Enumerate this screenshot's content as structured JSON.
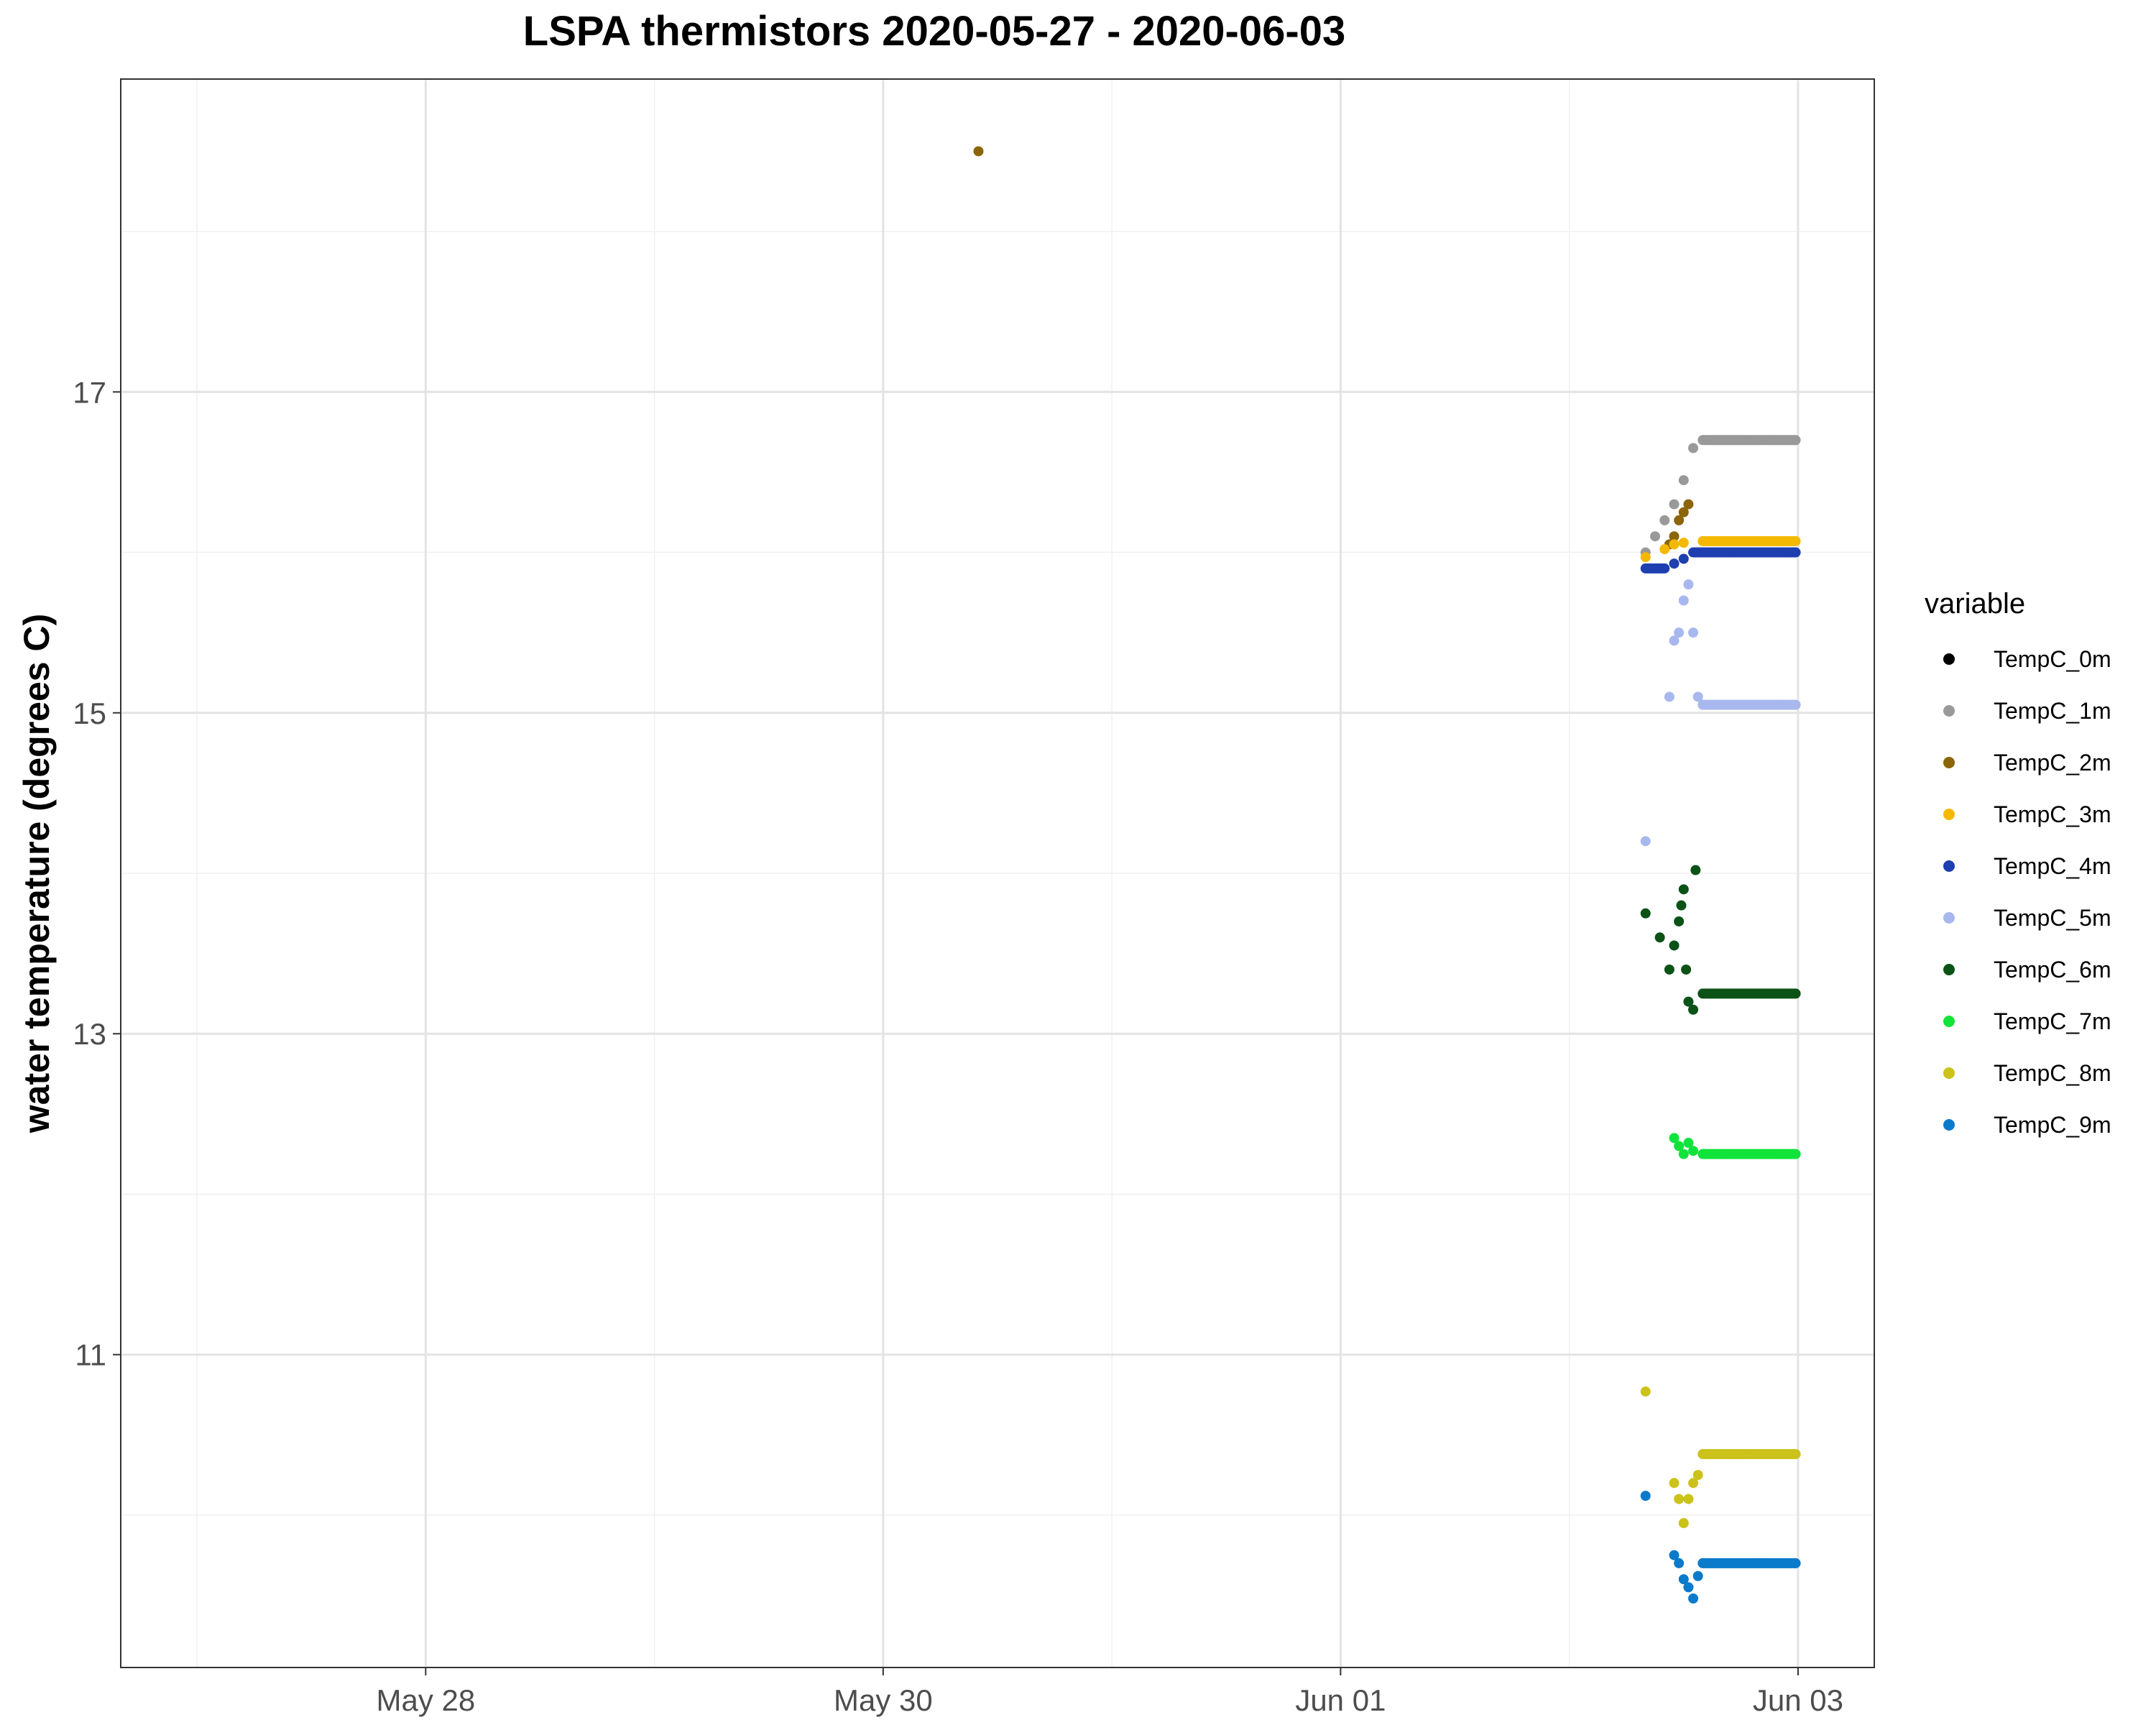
{
  "chart_data": {
    "type": "scatter",
    "title": "LSPA thermistors 2020-05-27 - 2020-06-03",
    "xlabel": "",
    "ylabel": "water temperature (degrees C)",
    "x_tick_labels": [
      "May 28",
      "May 30",
      "Jun 01",
      "Jun 03"
    ],
    "y_tick_labels": [
      "11",
      "13",
      "15",
      "17"
    ],
    "xlim": [
      "2020-05-26 16:00",
      "2020-06-03 08:00"
    ],
    "ylim": [
      9.05,
      18.95
    ],
    "grid": true,
    "legend": {
      "title": "variable",
      "position": "right"
    },
    "series": [
      {
        "name": "TempC_0m",
        "color": "#000000",
        "points": []
      },
      {
        "name": "TempC_1m",
        "color": "#999999",
        "points": [
          [
            "2020-06-02 08:00",
            16.0
          ],
          [
            "2020-06-02 09:00",
            16.1
          ],
          [
            "2020-06-02 10:00",
            16.2
          ],
          [
            "2020-06-02 11:00",
            16.3
          ],
          [
            "2020-06-02 12:00",
            16.45
          ],
          [
            "2020-06-02 13:00",
            16.65
          ],
          [
            "2020-06-02 14:00",
            16.7
          ],
          [
            "2020-06-02 16:00",
            16.7
          ],
          [
            "2020-06-02 18:00",
            16.7
          ],
          [
            "2020-06-02 20:00",
            16.7
          ],
          [
            "2020-06-02 22:00",
            16.7
          ],
          [
            "2020-06-02 23:45",
            16.7
          ]
        ]
      },
      {
        "name": "TempC_2m",
        "color": "#8B6508",
        "points": [
          [
            "2020-05-30 10:00",
            18.5
          ],
          [
            "2020-06-02 10:30",
            16.05
          ],
          [
            "2020-06-02 11:00",
            16.1
          ],
          [
            "2020-06-02 11:30",
            16.2
          ],
          [
            "2020-06-02 12:00",
            16.25
          ],
          [
            "2020-06-02 12:30",
            16.3
          ]
        ]
      },
      {
        "name": "TempC_3m",
        "color": "#F5B800",
        "points": [
          [
            "2020-06-02 08:00",
            15.97
          ],
          [
            "2020-06-02 10:00",
            16.02
          ],
          [
            "2020-06-02 11:00",
            16.05
          ],
          [
            "2020-06-02 12:00",
            16.06
          ],
          [
            "2020-06-02 14:00",
            16.07
          ],
          [
            "2020-06-02 16:00",
            16.07
          ],
          [
            "2020-06-02 18:00",
            16.07
          ],
          [
            "2020-06-02 20:00",
            16.07
          ],
          [
            "2020-06-02 22:00",
            16.07
          ],
          [
            "2020-06-02 23:45",
            16.07
          ]
        ]
      },
      {
        "name": "TempC_4m",
        "color": "#1E3FB0",
        "points": [
          [
            "2020-06-02 08:00",
            15.9
          ],
          [
            "2020-06-02 10:00",
            15.9
          ],
          [
            "2020-06-02 11:00",
            15.93
          ],
          [
            "2020-06-02 12:00",
            15.96
          ],
          [
            "2020-06-02 13:00",
            16.0
          ],
          [
            "2020-06-02 15:00",
            16.0
          ],
          [
            "2020-06-02 17:00",
            16.0
          ],
          [
            "2020-06-02 19:00",
            16.0
          ],
          [
            "2020-06-02 21:00",
            16.0
          ],
          [
            "2020-06-02 23:45",
            16.0
          ]
        ]
      },
      {
        "name": "TempC_5m",
        "color": "#A8B8EE",
        "points": [
          [
            "2020-06-02 08:00",
            14.2
          ],
          [
            "2020-06-02 10:30",
            15.1
          ],
          [
            "2020-06-02 11:00",
            15.45
          ],
          [
            "2020-06-02 11:30",
            15.5
          ],
          [
            "2020-06-02 12:00",
            15.7
          ],
          [
            "2020-06-02 12:30",
            15.8
          ],
          [
            "2020-06-02 13:00",
            15.5
          ],
          [
            "2020-06-02 13:30",
            15.1
          ],
          [
            "2020-06-02 14:00",
            15.05
          ],
          [
            "2020-06-02 16:00",
            15.05
          ],
          [
            "2020-06-02 18:00",
            15.05
          ],
          [
            "2020-06-02 20:00",
            15.05
          ],
          [
            "2020-06-02 22:00",
            15.05
          ],
          [
            "2020-06-02 23:45",
            15.05
          ]
        ]
      },
      {
        "name": "TempC_6m",
        "color": "#0B5217",
        "points": [
          [
            "2020-06-02 08:00",
            13.75
          ],
          [
            "2020-06-02 09:30",
            13.6
          ],
          [
            "2020-06-02 10:30",
            13.4
          ],
          [
            "2020-06-02 11:00",
            13.55
          ],
          [
            "2020-06-02 11:30",
            13.7
          ],
          [
            "2020-06-02 11:45",
            13.8
          ],
          [
            "2020-06-02 12:00",
            13.9
          ],
          [
            "2020-06-02 12:15",
            13.4
          ],
          [
            "2020-06-02 12:30",
            13.2
          ],
          [
            "2020-06-02 13:00",
            13.15
          ],
          [
            "2020-06-02 13:15",
            14.02
          ],
          [
            "2020-06-02 14:00",
            13.25
          ],
          [
            "2020-06-02 16:00",
            13.25
          ],
          [
            "2020-06-02 18:00",
            13.25
          ],
          [
            "2020-06-02 20:00",
            13.25
          ],
          [
            "2020-06-02 22:00",
            13.25
          ],
          [
            "2020-06-02 23:45",
            13.25
          ]
        ]
      },
      {
        "name": "TempC_7m",
        "color": "#11E33B",
        "points": [
          [
            "2020-06-02 11:00",
            12.35
          ],
          [
            "2020-06-02 11:30",
            12.3
          ],
          [
            "2020-06-02 12:00",
            12.25
          ],
          [
            "2020-06-02 12:30",
            12.32
          ],
          [
            "2020-06-02 13:00",
            12.27
          ],
          [
            "2020-06-02 14:00",
            12.25
          ],
          [
            "2020-06-02 16:00",
            12.25
          ],
          [
            "2020-06-02 18:00",
            12.25
          ],
          [
            "2020-06-02 20:00",
            12.25
          ],
          [
            "2020-06-02 22:00",
            12.25
          ],
          [
            "2020-06-02 23:45",
            12.25
          ]
        ]
      },
      {
        "name": "TempC_8m",
        "color": "#CBC21A",
        "points": [
          [
            "2020-06-02 08:00",
            10.77
          ],
          [
            "2020-06-02 11:00",
            10.2
          ],
          [
            "2020-06-02 11:30",
            10.1
          ],
          [
            "2020-06-02 12:00",
            9.95
          ],
          [
            "2020-06-02 12:30",
            10.1
          ],
          [
            "2020-06-02 13:00",
            10.2
          ],
          [
            "2020-06-02 13:30",
            10.25
          ],
          [
            "2020-06-02 14:00",
            10.38
          ],
          [
            "2020-06-02 16:00",
            10.38
          ],
          [
            "2020-06-02 18:00",
            10.38
          ],
          [
            "2020-06-02 20:00",
            10.38
          ],
          [
            "2020-06-02 22:00",
            10.38
          ],
          [
            "2020-06-02 23:45",
            10.38
          ]
        ]
      },
      {
        "name": "TempC_9m",
        "color": "#0A7ACB",
        "points": [
          [
            "2020-06-02 08:00",
            10.12
          ],
          [
            "2020-06-02 11:00",
            9.75
          ],
          [
            "2020-06-02 11:30",
            9.7
          ],
          [
            "2020-06-02 12:00",
            9.6
          ],
          [
            "2020-06-02 12:30",
            9.55
          ],
          [
            "2020-06-02 13:00",
            9.48
          ],
          [
            "2020-06-02 13:30",
            9.62
          ],
          [
            "2020-06-02 14:00",
            9.7
          ],
          [
            "2020-06-02 16:00",
            9.7
          ],
          [
            "2020-06-02 18:00",
            9.7
          ],
          [
            "2020-06-02 20:00",
            9.7
          ],
          [
            "2020-06-02 22:00",
            9.7
          ],
          [
            "2020-06-02 23:45",
            9.7
          ]
        ]
      }
    ]
  }
}
